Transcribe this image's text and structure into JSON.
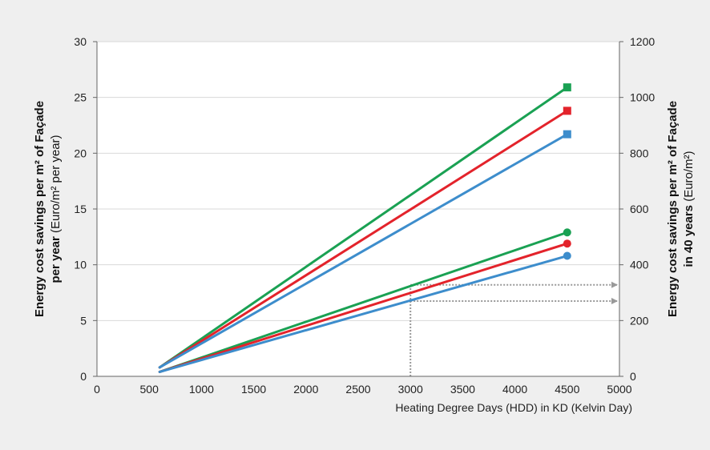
{
  "chart_data": {
    "type": "line",
    "x_range": [
      0,
      5000
    ],
    "x_ticks": [
      0,
      500,
      1000,
      1500,
      2000,
      2500,
      3000,
      3500,
      4000,
      4500,
      5000
    ],
    "xlabel": "Heating Degree Days (HDD) in KD (Kelvin Day)",
    "ylim_left": [
      0,
      30
    ],
    "y_ticks_left": [
      0,
      5,
      10,
      15,
      20,
      25,
      30
    ],
    "ylim_right": [
      0,
      1200
    ],
    "y_ticks_right": [
      0,
      200,
      400,
      600,
      800,
      1000,
      1200
    ],
    "ylabel_left": {
      "line1_bold": "Energy cost savings per m² of Façade",
      "line2_bold": "per year",
      "line2_normal": " (Euro/m² per year)"
    },
    "ylabel_right": {
      "line1_bold": "Energy cost savings per m² of Façade",
      "line2_bold": "in 40 years",
      "line2_normal": " (Euro/m²)"
    },
    "grid": "horizontal",
    "series": [
      {
        "color": "#1aa153",
        "marker": "square",
        "x": [
          600,
          4500
        ],
        "y": [
          0.8,
          25.9
        ]
      },
      {
        "color": "#e3232b",
        "marker": "square",
        "x": [
          600,
          4500
        ],
        "y": [
          0.8,
          23.8
        ]
      },
      {
        "color": "#3d8dcc",
        "marker": "square",
        "x": [
          600,
          4500
        ],
        "y": [
          0.8,
          21.7
        ]
      },
      {
        "color": "#1aa153",
        "marker": "circle",
        "x": [
          600,
          4500
        ],
        "y": [
          0.4,
          12.9
        ]
      },
      {
        "color": "#e3232b",
        "marker": "circle",
        "x": [
          600,
          4500
        ],
        "y": [
          0.4,
          11.9
        ]
      },
      {
        "color": "#3d8dcc",
        "marker": "circle",
        "x": [
          600,
          4500
        ],
        "y": [
          0.4,
          10.8
        ]
      }
    ],
    "reference_lines": {
      "color": "#999999",
      "vertical_x": 3000,
      "arrows_y_right": [
        328,
        270
      ]
    }
  }
}
